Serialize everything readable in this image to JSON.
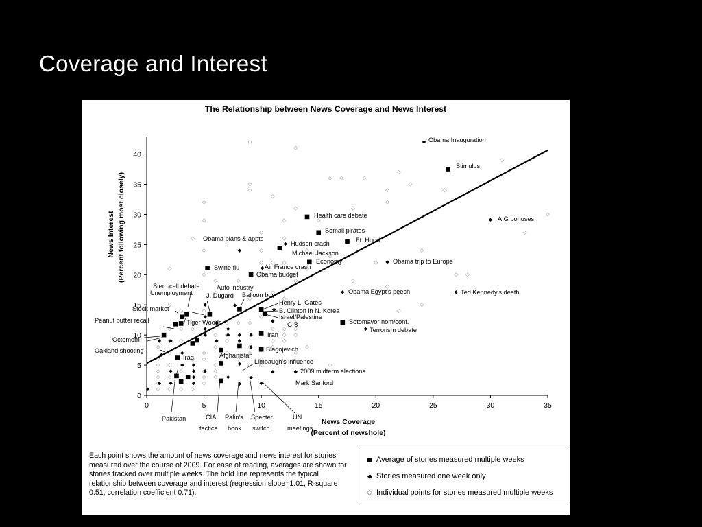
{
  "slide": {
    "title": "Coverage and Interest"
  },
  "legend": {
    "items": [
      {
        "label": "Average of stories measured multiple weeks",
        "marker": "square"
      },
      {
        "label": "Stories measured one week only",
        "marker": "diamond"
      },
      {
        "label": "Individual points for stories measured multiple weeks",
        "marker": "open-diamond"
      }
    ]
  },
  "caption": "Each point shows the amount of news coverage and news interest for stories measured over the course of 2009. For ease of reading, averages are shown for stories tracked over multiple weeks. The bold line represents the typical relationship between coverage and interest (regression slope=1.01, R-square 0.51, correlation coefficient 0.71).",
  "colors": {
    "background": "#000000",
    "figure": "#ffffff",
    "ink": "#000000",
    "individual_points": "#bbbbbb"
  },
  "chart_data": {
    "type": "scatter",
    "title": "The Relationship between News Coverage and News Interest",
    "xlabel": [
      "News Coverage",
      "(Percent of newshole)"
    ],
    "ylabel": [
      "News Interest",
      "(Percent following most closely)"
    ],
    "xlim": [
      0,
      35
    ],
    "ylim": [
      0,
      42
    ],
    "xticks": [
      0,
      5,
      10,
      15,
      20,
      25,
      30,
      35
    ],
    "yticks": [
      0,
      5,
      10,
      15,
      20,
      25,
      30,
      35,
      40
    ],
    "regression": {
      "slope": 1.01,
      "intercept": 5.3
    },
    "series": [
      {
        "name": "Average of stories measured multiple weeks",
        "marker": "square",
        "points": [
          {
            "label": "Stimulus",
            "x": 26.3,
            "y": 37.5
          },
          {
            "label": "Health care debate",
            "x": 14.0,
            "y": 29.6
          },
          {
            "label": "Somali pirates",
            "x": 15.0,
            "y": 27.0
          },
          {
            "label": "Ft. Hood",
            "x": 17.5,
            "y": 25.5
          },
          {
            "label": "Michael Jackson",
            "x": 11.6,
            "y": 24.4
          },
          {
            "label": "Economy",
            "x": 14.2,
            "y": 22.1
          },
          {
            "label": "Swine flu",
            "x": 5.3,
            "y": 21.1
          },
          {
            "label": "Obama budget",
            "x": 9.1,
            "y": 20.0
          },
          {
            "label": "J. Dugard",
            "x": 5.5,
            "y": 13.4
          },
          {
            "label": "Balloon boy",
            "x": 8.1,
            "y": 14.3
          },
          {
            "label": "Unemployment",
            "x": 3.5,
            "y": 13.4
          },
          {
            "label": "Stock market",
            "x": 3.1,
            "y": 13.0
          },
          {
            "label": "Peanut butter recall",
            "x": 2.5,
            "y": 11.8
          },
          {
            "label": "Tiger Woods",
            "x": 3.0,
            "y": 11.9
          },
          {
            "label": "Henry L. Gates",
            "x": 10.0,
            "y": 14.2
          },
          {
            "label": "Israel/Palestine",
            "x": 10.3,
            "y": 13.5
          },
          {
            "label": "Sotomayor nom/conf.",
            "x": 17.1,
            "y": 12.1
          },
          {
            "label": "Iran",
            "x": 10.0,
            "y": 10.3
          },
          {
            "label": "Blagojevich",
            "x": 10.0,
            "y": 7.6
          },
          {
            "label": "Octomom",
            "x": 1.5,
            "y": 10.0
          },
          {
            "label": "Afghanistan",
            "x": 6.5,
            "y": 7.5
          },
          {
            "label": "Iraq",
            "x": 2.7,
            "y": 6.2
          },
          {
            "label": "Pakistan",
            "x": 2.6,
            "y": 3.2
          },
          {
            "label": "CIA tactics",
            "x": 6.5,
            "y": 2.4
          },
          {
            "x": 3.0,
            "y": 2.3
          },
          {
            "x": 3.6,
            "y": 3.0
          },
          {
            "x": 4.4,
            "y": 9.1
          },
          {
            "x": 4.0,
            "y": 8.6
          },
          {
            "x": 6.5,
            "y": 5.3
          },
          {
            "x": 8.1,
            "y": 8.2
          }
        ]
      },
      {
        "name": "Stories measured one week only",
        "marker": "diamond",
        "points": [
          {
            "label": "Obama Inauguration",
            "x": 24.2,
            "y": 42.0
          },
          {
            "label": "AIG bonuses",
            "x": 30.0,
            "y": 29.1
          },
          {
            "label": "Hudson crash",
            "x": 12.1,
            "y": 25.1
          },
          {
            "label": "Obama plans & appts",
            "x": 8.1,
            "y": 24.0
          },
          {
            "label": "Air France crash",
            "x": 10.1,
            "y": 21.1
          },
          {
            "label": "Obama trip to Europe",
            "x": 21.0,
            "y": 22.1
          },
          {
            "label": "Obama Egypt's peech",
            "x": 17.1,
            "y": 17.1
          },
          {
            "label": "Ted Kennedy's death",
            "x": 27.0,
            "y": 17.1
          },
          {
            "label": "Stem cell debate",
            "x": 5.1,
            "y": 15.0
          },
          {
            "label": "Auto industry",
            "x": 7.7,
            "y": 14.9
          },
          {
            "label": "B. Clinton in N. Korea",
            "x": 11.1,
            "y": 14.2
          },
          {
            "label": "G-8",
            "x": 11.0,
            "y": 12.3
          },
          {
            "label": "Terrorism debate",
            "x": 19.1,
            "y": 11.0
          },
          {
            "label": "Oakland shooting",
            "x": 1.3,
            "y": 6.7
          },
          {
            "label": "Limbaugh's influence",
            "x": 8.1,
            "y": 5.2
          },
          {
            "label": "2009 midterm elections",
            "x": 13.0,
            "y": 3.9
          },
          {
            "label": "Mark Sanford",
            "x": 11.0,
            "y": 3.9
          },
          {
            "label": "Palin's book",
            "x": 8.1,
            "y": 1.9
          },
          {
            "label": "Specter switch",
            "x": 9.1,
            "y": 2.9
          },
          {
            "label": "UN meetings",
            "x": 10.0,
            "y": 2.0
          },
          {
            "x": 0.1,
            "y": 1.0
          },
          {
            "x": 1.1,
            "y": 2.0
          },
          {
            "x": 1.1,
            "y": 9.0
          },
          {
            "x": 2.1,
            "y": 9.0
          },
          {
            "x": 2.1,
            "y": 4.0
          },
          {
            "x": 2.1,
            "y": 2.0
          },
          {
            "x": 3.1,
            "y": 5.0
          },
          {
            "x": 3.1,
            "y": 7.0
          },
          {
            "x": 4.1,
            "y": 5.0
          },
          {
            "x": 4.1,
            "y": 4.0
          },
          {
            "x": 4.1,
            "y": 3.0
          },
          {
            "x": 4.1,
            "y": 2.0
          },
          {
            "x": 5.1,
            "y": 4.0
          },
          {
            "x": 5.1,
            "y": 10.0
          },
          {
            "x": 5.1,
            "y": 11.0
          },
          {
            "x": 5.1,
            "y": 13.0
          },
          {
            "x": 6.1,
            "y": 12.0
          },
          {
            "x": 6.1,
            "y": 9.0
          },
          {
            "x": 7.1,
            "y": 11.0
          },
          {
            "x": 7.1,
            "y": 10.0
          },
          {
            "x": 7.1,
            "y": 3.0
          },
          {
            "x": 8.1,
            "y": 10.0
          },
          {
            "x": 8.1,
            "y": 9.0
          },
          {
            "x": 9.1,
            "y": 10.0
          },
          {
            "x": 9.1,
            "y": 8.0
          }
        ]
      },
      {
        "name": "Individual points for stories measured multiple weeks",
        "marker": "open-diamond",
        "points": [
          {
            "x": 9.0,
            "y": 42.0
          },
          {
            "x": 13.0,
            "y": 41.0
          },
          {
            "x": 31.0,
            "y": 39.0
          },
          {
            "x": 22.0,
            "y": 37.0
          },
          {
            "x": 16.0,
            "y": 36.0
          },
          {
            "x": 17.0,
            "y": 36.0
          },
          {
            "x": 19.0,
            "y": 36.0
          },
          {
            "x": 21.0,
            "y": 34.0
          },
          {
            "x": 23.0,
            "y": 35.0
          },
          {
            "x": 26.0,
            "y": 34.0
          },
          {
            "x": 9.0,
            "y": 35.0
          },
          {
            "x": 9.0,
            "y": 34.0
          },
          {
            "x": 11.0,
            "y": 33.0
          },
          {
            "x": 5.0,
            "y": 32.0
          },
          {
            "x": 21.0,
            "y": 32.0
          },
          {
            "x": 13.0,
            "y": 31.0
          },
          {
            "x": 18.0,
            "y": 31.0
          },
          {
            "x": 35.0,
            "y": 30.0
          },
          {
            "x": 5.0,
            "y": 29.0
          },
          {
            "x": 12.0,
            "y": 29.0
          },
          {
            "x": 15.0,
            "y": 29.0
          },
          {
            "x": 33.0,
            "y": 27.0
          },
          {
            "x": 10.0,
            "y": 27.0
          },
          {
            "x": 12.0,
            "y": 26.0
          },
          {
            "x": 4.0,
            "y": 26.0
          },
          {
            "x": 24.0,
            "y": 24.0
          },
          {
            "x": 5.0,
            "y": 24.0
          },
          {
            "x": 10.0,
            "y": 24.0
          },
          {
            "x": 14.0,
            "y": 24.0
          },
          {
            "x": 16.0,
            "y": 23.0
          },
          {
            "x": 20.0,
            "y": 22.0
          },
          {
            "x": 10.0,
            "y": 22.0
          },
          {
            "x": 11.0,
            "y": 22.0
          },
          {
            "x": 12.0,
            "y": 22.0
          },
          {
            "x": 14.0,
            "y": 21.0
          },
          {
            "x": 2.0,
            "y": 21.0
          },
          {
            "x": 5.0,
            "y": 20.0
          },
          {
            "x": 27.0,
            "y": 20.0
          },
          {
            "x": 28.0,
            "y": 20.0
          },
          {
            "x": 6.0,
            "y": 19.0
          },
          {
            "x": 8.0,
            "y": 19.0
          },
          {
            "x": 13.0,
            "y": 19.0
          },
          {
            "x": 18.0,
            "y": 19.0
          },
          {
            "x": 21.0,
            "y": 18.0
          },
          {
            "x": 2.0,
            "y": 18.0
          },
          {
            "x": 4.0,
            "y": 18.0
          },
          {
            "x": 8.0,
            "y": 18.0
          },
          {
            "x": 11.0,
            "y": 17.0
          },
          {
            "x": 6.0,
            "y": 17.0
          },
          {
            "x": 22.0,
            "y": 17.0
          },
          {
            "x": 12.0,
            "y": 16.0
          },
          {
            "x": 24.0,
            "y": 15.0
          },
          {
            "x": 2.0,
            "y": 15.0
          },
          {
            "x": 9.0,
            "y": 16.0
          },
          {
            "x": 13.0,
            "y": 14.0
          },
          {
            "x": 22.0,
            "y": 14.0
          },
          {
            "x": 3.0,
            "y": 14.0
          },
          {
            "x": 5.0,
            "y": 14.0
          },
          {
            "x": 10.0,
            "y": 13.0
          },
          {
            "x": 12.0,
            "y": 13.0
          },
          {
            "x": 13.0,
            "y": 12.0
          },
          {
            "x": 6.0,
            "y": 12.0
          },
          {
            "x": 7.0,
            "y": 12.0
          },
          {
            "x": 8.0,
            "y": 12.0
          },
          {
            "x": 9.0,
            "y": 12.0
          },
          {
            "x": 11.0,
            "y": 11.0
          },
          {
            "x": 12.0,
            "y": 11.0
          },
          {
            "x": 13.0,
            "y": 11.0
          },
          {
            "x": 2.0,
            "y": 11.0
          },
          {
            "x": 3.0,
            "y": 11.0
          },
          {
            "x": 4.0,
            "y": 11.0
          },
          {
            "x": 6.0,
            "y": 10.0
          },
          {
            "x": 7.0,
            "y": 10.0
          },
          {
            "x": 12.0,
            "y": 10.0
          },
          {
            "x": 13.0,
            "y": 10.0
          },
          {
            "x": 2.0,
            "y": 9.0
          },
          {
            "x": 3.0,
            "y": 9.0
          },
          {
            "x": 7.0,
            "y": 9.0
          },
          {
            "x": 11.0,
            "y": 9.0
          },
          {
            "x": 12.0,
            "y": 9.0
          },
          {
            "x": 1.0,
            "y": 8.0
          },
          {
            "x": 6.0,
            "y": 8.0
          },
          {
            "x": 9.0,
            "y": 8.0
          },
          {
            "x": 11.0,
            "y": 8.0
          },
          {
            "x": 2.0,
            "y": 7.0
          },
          {
            "x": 5.0,
            "y": 7.0
          },
          {
            "x": 7.0,
            "y": 7.0
          },
          {
            "x": 9.0,
            "y": 7.0
          },
          {
            "x": 1.0,
            "y": 6.0
          },
          {
            "x": 4.0,
            "y": 6.0
          },
          {
            "x": 5.0,
            "y": 6.0
          },
          {
            "x": 8.0,
            "y": 6.0
          },
          {
            "x": 10.0,
            "y": 6.0
          },
          {
            "x": 1.0,
            "y": 5.0
          },
          {
            "x": 2.0,
            "y": 5.0
          },
          {
            "x": 6.0,
            "y": 5.0
          },
          {
            "x": 9.0,
            "y": 5.0
          },
          {
            "x": 10.0,
            "y": 5.0
          },
          {
            "x": 1.0,
            "y": 4.0
          },
          {
            "x": 3.0,
            "y": 4.0
          },
          {
            "x": 5.0,
            "y": 4.0
          },
          {
            "x": 6.0,
            "y": 4.0
          },
          {
            "x": 1.0,
            "y": 3.0
          },
          {
            "x": 2.0,
            "y": 3.0
          },
          {
            "x": 5.0,
            "y": 3.0
          },
          {
            "x": 6.0,
            "y": 3.0
          },
          {
            "x": 1.0,
            "y": 2.0
          },
          {
            "x": 5.0,
            "y": 2.0
          },
          {
            "x": 1.0,
            "y": 1.0
          },
          {
            "x": 2.0,
            "y": 1.0
          },
          {
            "x": 3.0,
            "y": 1.0
          },
          {
            "x": 4.0,
            "y": 1.0
          },
          {
            "x": 16.0,
            "y": 2.0
          },
          {
            "x": 16.0,
            "y": 5.0
          },
          {
            "x": 13.0,
            "y": 7.0
          },
          {
            "x": 14.0,
            "y": 8.0
          }
        ]
      }
    ],
    "labels": [
      "Obama Inauguration",
      "Stimulus",
      "Health care debate",
      "Somali pirates",
      "Obama plans & appts",
      "Hudson crash",
      "Ft. Hood",
      "Michael Jackson",
      "Economy",
      "Swine flu",
      "Air France crash",
      "Obama budget",
      "Obama trip to Europe",
      "AIG bonuses",
      "Stem cell debate",
      "Auto industry",
      "Unemployment",
      "J. Dugard",
      "Balloon boy",
      "Stock market",
      "Henry L. Gates",
      "B. Clinton in N. Korea",
      "Israel/Palestine",
      "Peanut butter recall",
      "Tiger Woods",
      "G-8",
      "Obama Egypt's peech",
      "Ted Kennedy's death",
      "Sotomayor nom/conf.",
      "Terrorism debate",
      "Iran",
      "Octomom",
      "Blagojevich",
      "Oakland shooting",
      "Afghanistan",
      "Iraq",
      "Limbaugh's influence",
      "2009 midterm elections",
      "Mark Sanford",
      "Pakistan",
      "CIA",
      "tactics",
      "Palin's",
      "book",
      "Specter",
      "switch",
      "UN",
      "meetings"
    ]
  }
}
